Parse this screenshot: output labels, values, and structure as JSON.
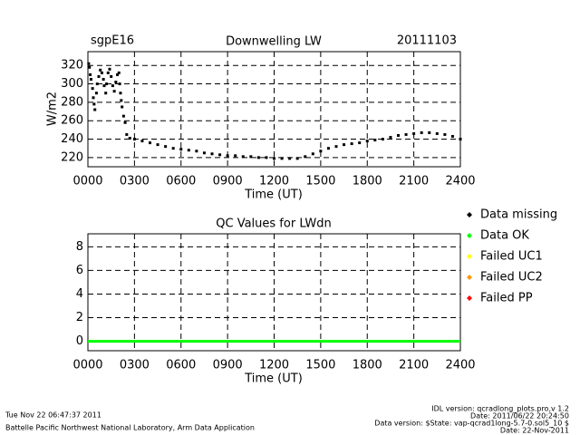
{
  "chart_data": [
    {
      "type": "scatter",
      "title": "Downwelling LW",
      "station": "sgpE16",
      "date": "20111103",
      "ylabel": "W/m2",
      "xlabel": "Time (UT)",
      "xlim": [
        0,
        24
      ],
      "ylim": [
        210,
        335
      ],
      "xticks": [
        {
          "value": 0,
          "label": "0000"
        },
        {
          "value": 3,
          "label": "0300"
        },
        {
          "value": 6,
          "label": "0600"
        },
        {
          "value": 9,
          "label": "0900"
        },
        {
          "value": 12,
          "label": "1200"
        },
        {
          "value": 15,
          "label": "1500"
        },
        {
          "value": 18,
          "label": "1800"
        },
        {
          "value": 21,
          "label": "2100"
        },
        {
          "value": 24,
          "label": "2400"
        }
      ],
      "yticks": [
        220,
        240,
        260,
        280,
        300,
        320
      ],
      "grid": true,
      "series": [
        {
          "color": "#000000",
          "x": [
            0.05,
            0.1,
            0.15,
            0.2,
            0.3,
            0.35,
            0.4,
            0.45,
            0.55,
            0.6,
            0.7,
            0.8,
            0.9,
            1.0,
            1.05,
            1.15,
            1.2,
            1.3,
            1.4,
            1.5,
            1.6,
            1.7,
            1.8,
            1.9,
            2.0,
            2.05,
            2.1,
            2.15,
            2.2,
            2.3,
            2.4,
            2.5,
            2.7,
            3,
            3.5,
            4,
            4.5,
            5,
            5.5,
            6,
            6.5,
            7,
            7.5,
            8,
            8.5,
            9,
            9.5,
            10,
            10.5,
            11,
            11.5,
            12,
            12.5,
            13,
            13.5,
            14,
            14.5,
            15,
            15.5,
            16,
            16.5,
            17,
            17.5,
            18,
            18.5,
            19,
            19.5,
            20,
            20.5,
            21,
            21.5,
            22,
            22.5,
            23,
            23.5,
            24
          ],
          "values": [
            322,
            318,
            310,
            305,
            295,
            285,
            278,
            272,
            290,
            300,
            308,
            315,
            312,
            305,
            298,
            290,
            300,
            312,
            316,
            308,
            298,
            292,
            302,
            310,
            312,
            300,
            290,
            282,
            275,
            265,
            258,
            245,
            241,
            240,
            238,
            236,
            234,
            232,
            230,
            229,
            228,
            227,
            225,
            224,
            223,
            222,
            222,
            221,
            221,
            220,
            220,
            219,
            219,
            219,
            219,
            221,
            224,
            227,
            230,
            232,
            234,
            235,
            236,
            238,
            239,
            240,
            242,
            244,
            245,
            246,
            247,
            247,
            246,
            245,
            243,
            240
          ]
        }
      ]
    },
    {
      "type": "line",
      "title": "QC Values for LWdn",
      "xlabel": "Time (UT)",
      "xlim": [
        0,
        24
      ],
      "ylim": [
        -0.8,
        9.1
      ],
      "xticks": [
        {
          "value": 0,
          "label": "0000"
        },
        {
          "value": 3,
          "label": "0300"
        },
        {
          "value": 6,
          "label": "0600"
        },
        {
          "value": 9,
          "label": "0900"
        },
        {
          "value": 12,
          "label": "1200"
        },
        {
          "value": 15,
          "label": "1500"
        },
        {
          "value": 18,
          "label": "1800"
        },
        {
          "value": 21,
          "label": "2100"
        },
        {
          "value": 24,
          "label": "2400"
        }
      ],
      "yticks": [
        0,
        2,
        4,
        6,
        8
      ],
      "grid": true,
      "series": [
        {
          "name": "Data missing",
          "color": "#000000",
          "x": [
            0,
            24
          ],
          "values": [
            null,
            null
          ]
        },
        {
          "name": "Data OK",
          "color": "#00ff00",
          "x": [
            0,
            24
          ],
          "values": [
            0,
            0
          ]
        },
        {
          "name": "Failed UC1",
          "color": "#ffff00",
          "x": [
            0,
            24
          ],
          "values": [
            null,
            null
          ]
        },
        {
          "name": "Failed UC2",
          "color": "#ff9900",
          "x": [
            0,
            24
          ],
          "values": [
            null,
            null
          ]
        },
        {
          "name": "Failed PP",
          "color": "#ff0000",
          "x": [
            0,
            24
          ],
          "values": [
            null,
            null
          ]
        }
      ]
    }
  ],
  "footer": {
    "timestamp": "Tue Nov 22 06:47:37 2011",
    "lab": "Battelle Pacific Northwest National Laboratory, Arm Data Application",
    "idl_version": "IDL version: qcradlong_plots.pro,v 1.2",
    "idl_date": "Date: 2011/06/22 20:24:50",
    "data_version": "Data version: $State: vap-qcrad1long-5.7-0.sol5_10 $",
    "data_date": "Date: 22-Nov-2011"
  }
}
